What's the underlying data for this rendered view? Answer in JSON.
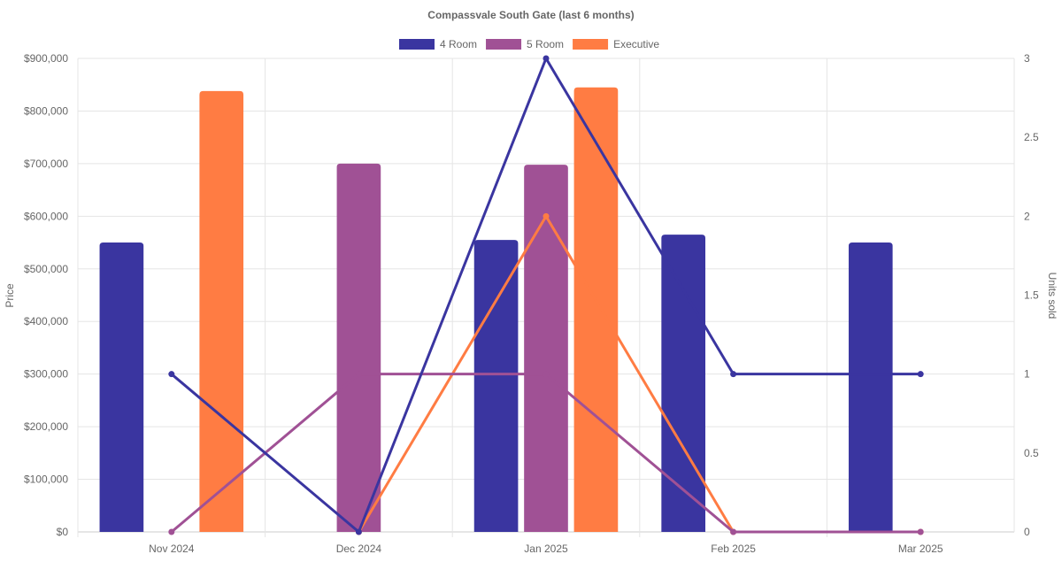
{
  "chart_data": {
    "type": "bar",
    "title": "Compassvale South Gate (last 6 months)",
    "categories": [
      "Nov 2024",
      "Dec 2024",
      "Jan 2025",
      "Feb 2025",
      "Mar 2025"
    ],
    "ylabel": "Price",
    "y2label": "Units sold",
    "ylim": [
      0,
      900000
    ],
    "y2lim": [
      0,
      3
    ],
    "yticks": [
      "$0",
      "$100,000",
      "$200,000",
      "$300,000",
      "$400,000",
      "$500,000",
      "$600,000",
      "$700,000",
      "$800,000",
      "$900,000"
    ],
    "y2ticks": [
      "0",
      "0.5",
      "1",
      "1.5",
      "2",
      "2.5",
      "3"
    ],
    "grid": true,
    "legend_position": "top",
    "series": [
      {
        "name": "4 Room",
        "color": "#3a35a0",
        "price": [
          550000,
          null,
          555000,
          565000,
          550000
        ],
        "units": [
          1,
          0,
          3,
          1,
          1
        ]
      },
      {
        "name": "5 Room",
        "color": "#a05195",
        "price": [
          null,
          700000,
          698000,
          null,
          null
        ],
        "units": [
          0,
          1,
          1,
          0,
          0
        ]
      },
      {
        "name": "Executive",
        "color": "#ff7c43",
        "price": [
          838000,
          null,
          845000,
          null,
          null
        ],
        "units": [
          null,
          0,
          2,
          0,
          0
        ]
      }
    ]
  }
}
